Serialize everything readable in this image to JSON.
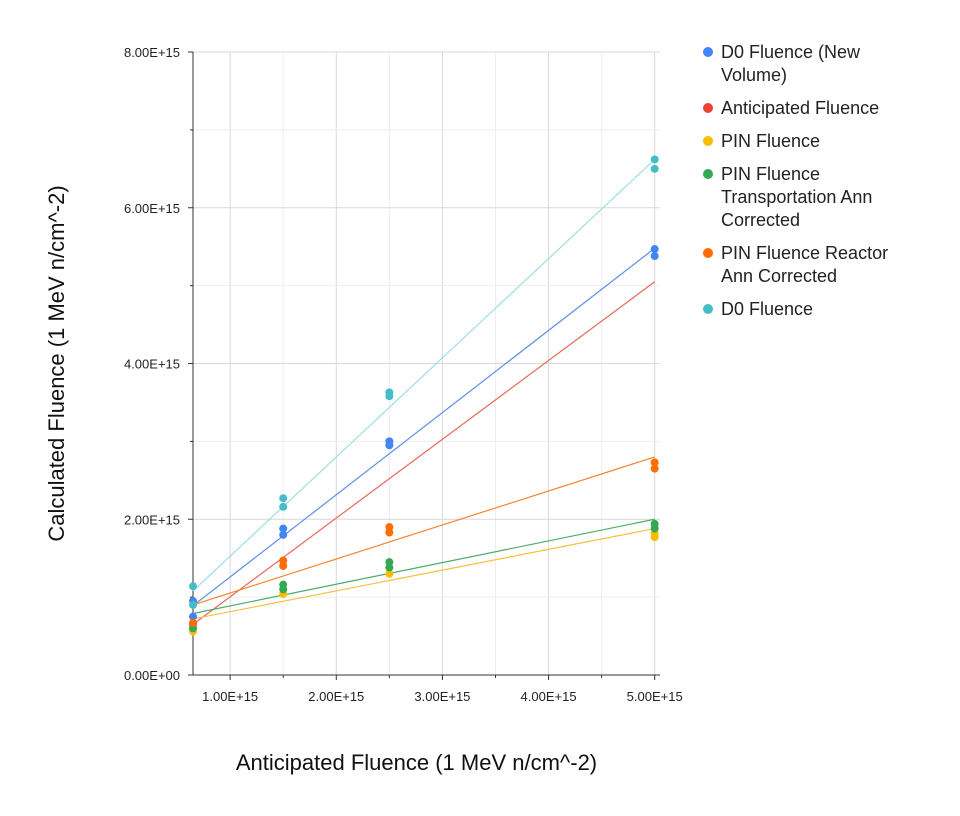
{
  "chart_data": {
    "type": "scatter",
    "title": "",
    "xlabel": "Anticipated Fluence (1 MeV n/cm^-2)",
    "ylabel": "Calculated Fluence (1 MeV n/cm^-2)",
    "xlim": [
      650000000000000.0,
      5050000000000000.0
    ],
    "ylim": [
      0,
      8000000000000000.0
    ],
    "x_ticks": [
      {
        "value": 1000000000000000.0,
        "label": "1.00E+15"
      },
      {
        "value": 2000000000000000.0,
        "label": "2.00E+15"
      },
      {
        "value": 3000000000000000.0,
        "label": "3.00E+15"
      },
      {
        "value": 4000000000000000.0,
        "label": "4.00E+15"
      },
      {
        "value": 5000000000000000.0,
        "label": "5.00E+15"
      }
    ],
    "y_ticks": [
      {
        "value": 0,
        "label": "0.00E+00"
      },
      {
        "value": 2000000000000000.0,
        "label": "2.00E+15"
      },
      {
        "value": 4000000000000000.0,
        "label": "4.00E+15"
      },
      {
        "value": 6000000000000000.0,
        "label": "6.00E+15"
      },
      {
        "value": 8000000000000000.0,
        "label": "8.00E+15"
      }
    ],
    "grid": true,
    "legend_position": "right",
    "trendlines": true,
    "series": [
      {
        "name": "D0 Fluence (New Volume)",
        "color": "#4285F4",
        "trend_color": "#5c8fe8",
        "points": [
          [
            650000000000000.0,
            750000000000000.0
          ],
          [
            650000000000000.0,
            950000000000000.0
          ],
          [
            1500000000000000.0,
            1800000000000000.0
          ],
          [
            1500000000000000.0,
            1880000000000000.0
          ],
          [
            2500000000000000.0,
            2950000000000000.0
          ],
          [
            2500000000000000.0,
            3000000000000000.0
          ],
          [
            5000000000000000.0,
            5380000000000000.0
          ],
          [
            5000000000000000.0,
            5470000000000000.0
          ]
        ],
        "trend": [
          [
            650000000000000.0,
            890000000000000.0
          ],
          [
            5000000000000000.0,
            5480000000000000.0
          ]
        ]
      },
      {
        "name": "Anticipated Fluence",
        "color": "#EA4335",
        "trend_color": "#e8685b",
        "points": [
          [
            650000000000000.0,
            650000000000000.0
          ]
        ],
        "trend": [
          [
            650000000000000.0,
            650000000000000.0
          ],
          [
            5000000000000000.0,
            5050000000000000.0
          ]
        ]
      },
      {
        "name": "PIN Fluence",
        "color": "#FBBC04",
        "trend_color": "#f5c23c",
        "points": [
          [
            650000000000000.0,
            560000000000000.0
          ],
          [
            1500000000000000.0,
            1040000000000000.0
          ],
          [
            2500000000000000.0,
            1300000000000000.0
          ],
          [
            5000000000000000.0,
            1770000000000000.0
          ],
          [
            5000000000000000.0,
            1820000000000000.0
          ]
        ],
        "trend": [
          [
            650000000000000.0,
            720000000000000.0
          ],
          [
            5000000000000000.0,
            1880000000000000.0
          ]
        ]
      },
      {
        "name": "PIN Fluence Transportation Ann Corrected",
        "color": "#34A853",
        "trend_color": "#4bab66",
        "points": [
          [
            650000000000000.0,
            600000000000000.0
          ],
          [
            1500000000000000.0,
            1100000000000000.0
          ],
          [
            1500000000000000.0,
            1160000000000000.0
          ],
          [
            2500000000000000.0,
            1380000000000000.0
          ],
          [
            2500000000000000.0,
            1450000000000000.0
          ],
          [
            5000000000000000.0,
            1880000000000000.0
          ],
          [
            5000000000000000.0,
            1940000000000000.0
          ]
        ],
        "trend": [
          [
            650000000000000.0,
            790000000000000.0
          ],
          [
            5000000000000000.0,
            2000000000000000.0
          ]
        ]
      },
      {
        "name": "PIN Fluence Reactor Ann Corrected",
        "color": "#FF6D01",
        "trend_color": "#f7862c",
        "points": [
          [
            650000000000000.0,
            670000000000000.0
          ],
          [
            1500000000000000.0,
            1400000000000000.0
          ],
          [
            1500000000000000.0,
            1470000000000000.0
          ],
          [
            2500000000000000.0,
            1830000000000000.0
          ],
          [
            2500000000000000.0,
            1900000000000000.0
          ],
          [
            5000000000000000.0,
            2650000000000000.0
          ],
          [
            5000000000000000.0,
            2730000000000000.0
          ]
        ],
        "trend": [
          [
            650000000000000.0,
            900000000000000.0
          ],
          [
            5000000000000000.0,
            2800000000000000.0
          ]
        ]
      },
      {
        "name": "D0 Fluence",
        "color": "#46BDC6",
        "trend_color": "#9fdde3",
        "points": [
          [
            650000000000000.0,
            900000000000000.0
          ],
          [
            650000000000000.0,
            1140000000000000.0
          ],
          [
            1500000000000000.0,
            2160000000000000.0
          ],
          [
            1500000000000000.0,
            2270000000000000.0
          ],
          [
            2500000000000000.0,
            3580000000000000.0
          ],
          [
            2500000000000000.0,
            3630000000000000.0
          ],
          [
            5000000000000000.0,
            6500000000000000.0
          ],
          [
            5000000000000000.0,
            6620000000000000.0
          ]
        ],
        "trend": [
          [
            650000000000000.0,
            1080000000000000.0
          ],
          [
            5000000000000000.0,
            6620000000000000.0
          ]
        ]
      }
    ],
    "legend": [
      {
        "lines": [
          "D0 Fluence (New",
          "Volume)"
        ],
        "color": "#4285F4"
      },
      {
        "lines": [
          "Anticipated Fluence"
        ],
        "color": "#EA4335"
      },
      {
        "lines": [
          "PIN Fluence"
        ],
        "color": "#FBBC04"
      },
      {
        "lines": [
          "PIN Fluence",
          "Transportation Ann",
          "Corrected"
        ],
        "color": "#34A853"
      },
      {
        "lines": [
          "PIN Fluence Reactor",
          "Ann Corrected"
        ],
        "color": "#FF6D01"
      },
      {
        "lines": [
          "D0 Fluence"
        ],
        "color": "#46BDC6"
      }
    ]
  }
}
